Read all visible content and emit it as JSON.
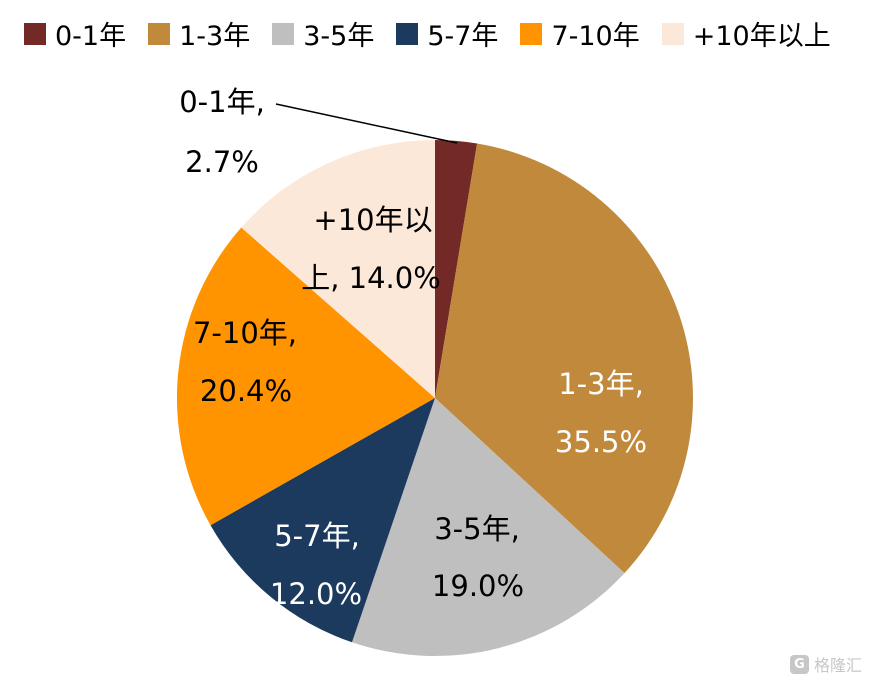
{
  "chart_data": {
    "type": "pie",
    "title": "",
    "categories": [
      "0-1年",
      "1-3年",
      "3-5年",
      "5-7年",
      "7-10年",
      "+10年以上"
    ],
    "values": [
      2.7,
      35.5,
      19.0,
      12.0,
      20.4,
      14.0
    ],
    "unit": "%",
    "colors": [
      "#732A26",
      "#C1893B",
      "#BFBFBF",
      "#1C3A5E",
      "#FF9300",
      "#FCE8D9"
    ],
    "legend_position": "top-left",
    "start_angle_deg": 0,
    "direction": "clockwise",
    "labels": [
      {
        "lines": [
          "0-1年,",
          "2.7%"
        ],
        "placement": "outside",
        "color": "#000000"
      },
      {
        "lines": [
          "1-3年,",
          "35.5%"
        ],
        "placement": "inside",
        "color": "#FFFFFF"
      },
      {
        "lines": [
          "3-5年,",
          "19.0%"
        ],
        "placement": "inside",
        "color": "#000000"
      },
      {
        "lines": [
          "5-7年,",
          "12.0%"
        ],
        "placement": "inside",
        "color": "#FFFFFF"
      },
      {
        "lines": [
          "7-10年,",
          "20.4%"
        ],
        "placement": "inside",
        "color": "#000000"
      },
      {
        "lines": [
          "+10年以",
          "上, 14.0%"
        ],
        "placement": "inside",
        "color": "#000000"
      }
    ]
  },
  "watermark": {
    "icon": "gelonghui-logo",
    "text": "格隆汇"
  }
}
